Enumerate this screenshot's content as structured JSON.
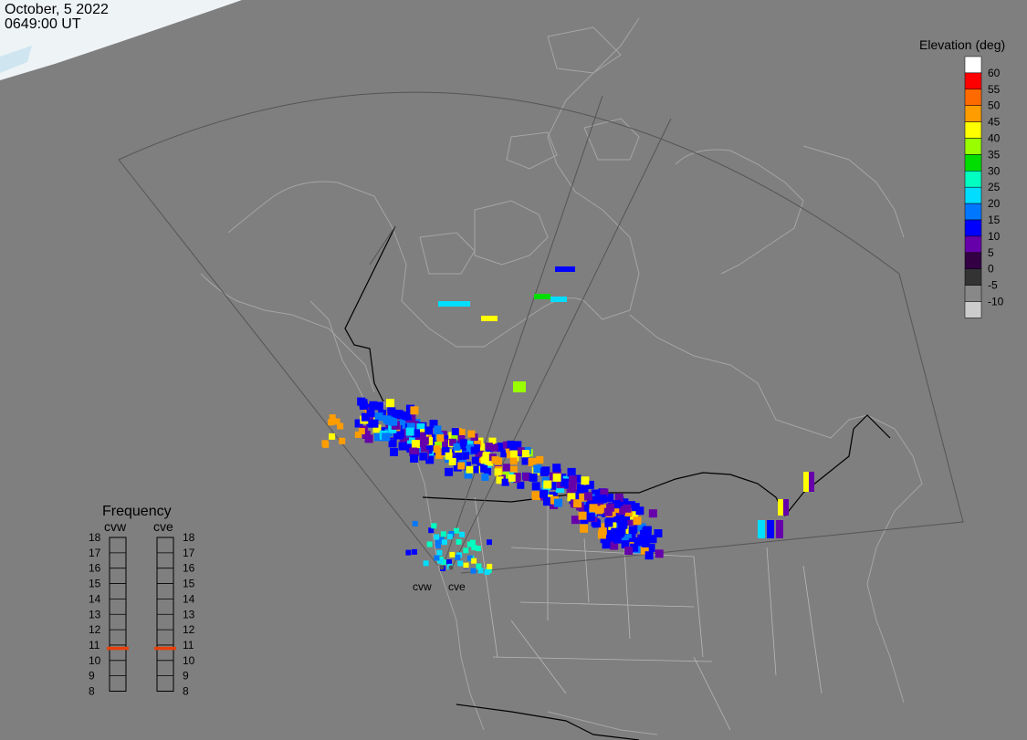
{
  "header": {
    "date": "October, 5 2022",
    "time": "0649:00 UT"
  },
  "elevation_scale": {
    "title": "Elevation (deg)",
    "levels": [
      {
        "label": "60",
        "color": "#ffffff"
      },
      {
        "label": "55",
        "color": "#ff0000"
      },
      {
        "label": "50",
        "color": "#ff6a00"
      },
      {
        "label": "45",
        "color": "#ff9d00"
      },
      {
        "label": "40",
        "color": "#ffff00"
      },
      {
        "label": "35",
        "color": "#99ff00"
      },
      {
        "label": "30",
        "color": "#00dd00"
      },
      {
        "label": "25",
        "color": "#00ffc0"
      },
      {
        "label": "20",
        "color": "#00ddff"
      },
      {
        "label": "15",
        "color": "#0077ff"
      },
      {
        "label": "10",
        "color": "#0000ff"
      },
      {
        "label": "5",
        "color": "#6600aa"
      },
      {
        "label": "0",
        "color": "#330044"
      },
      {
        "label": "-5",
        "color": "#333333"
      },
      {
        "label": "-10",
        "color": "#888888"
      },
      {
        "label": "",
        "color": "#cccccc"
      }
    ]
  },
  "frequency": {
    "title": "Frequency",
    "radars": [
      {
        "name": "cvw",
        "selected_mhz": 10.8
      },
      {
        "name": "cve",
        "selected_mhz": 10.8
      }
    ],
    "ticks": [
      "18",
      "17",
      "16",
      "15",
      "14",
      "13",
      "12",
      "11",
      "10",
      "9",
      "8"
    ],
    "indicator_color": "#e8400a"
  },
  "radar_sites": [
    {
      "label": "cvw"
    },
    {
      "label": "cve"
    }
  ]
}
